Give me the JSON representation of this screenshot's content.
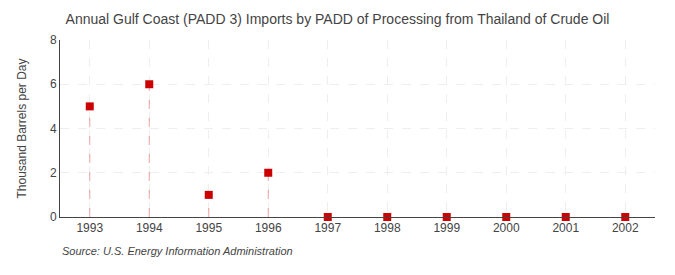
{
  "chart_data": {
    "type": "scatter",
    "title": "Annual Gulf Coast (PADD 3) Imports by PADD of Processing from Thailand of Crude Oil",
    "ylabel": "Thousand Barrels per Day",
    "annotations": [
      "Source: U.S. Energy Information Administration"
    ],
    "x": [
      1993,
      1994,
      1995,
      1996,
      1997,
      1998,
      1999,
      2000,
      2001,
      2002
    ],
    "values": [
      5.0,
      6.0,
      1.0,
      2.0,
      0.0,
      0.0,
      0.0,
      0.0,
      0.0,
      0.0
    ],
    "xlim": [
      1992.5,
      2002.5
    ],
    "xticks": [
      1993,
      1994,
      1995,
      1996,
      1997,
      1998,
      1999,
      2000,
      2001,
      2002
    ],
    "ylim": [
      0,
      8
    ],
    "yticks": [
      0,
      2,
      4,
      6,
      8
    ],
    "color": "#cc0000",
    "marker": "square",
    "grid": true
  }
}
